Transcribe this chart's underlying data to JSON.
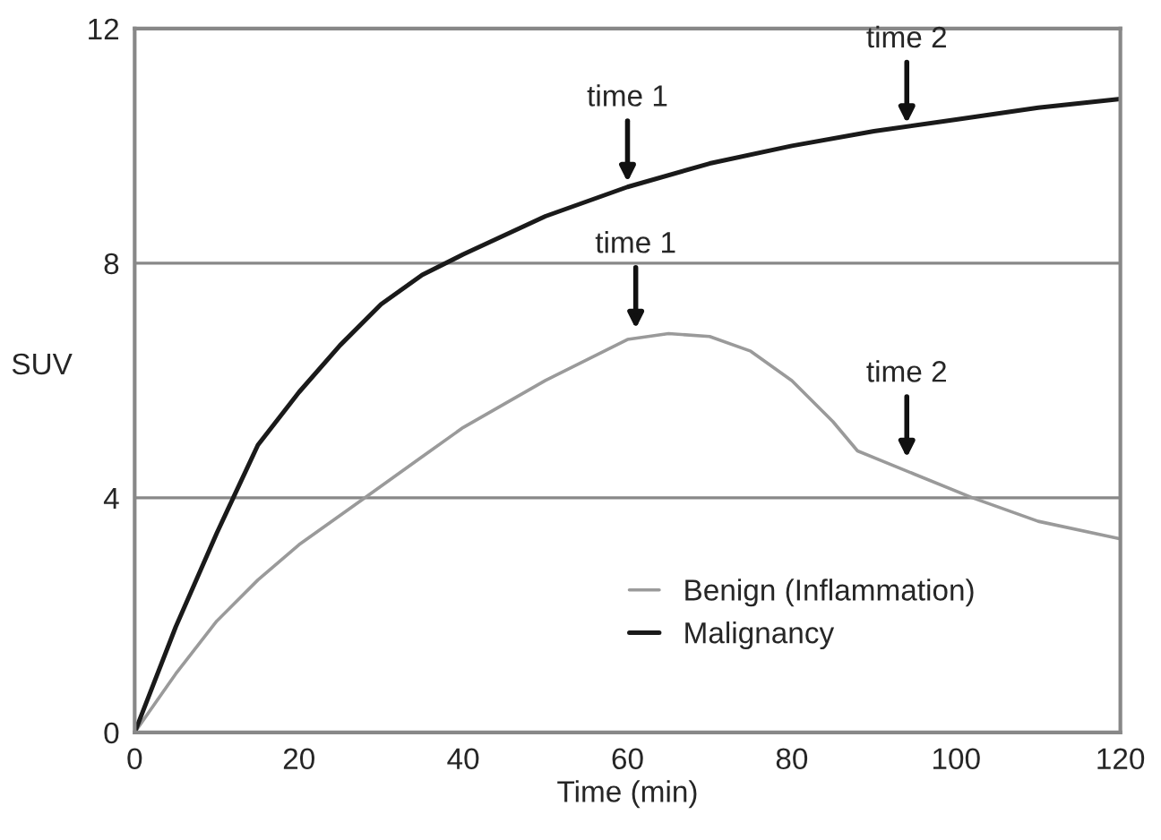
{
  "chart_data": {
    "type": "line",
    "xlabel": "Time (min)",
    "ylabel": "SUV",
    "xlim": [
      0,
      120
    ],
    "ylim": [
      0,
      12
    ],
    "xticks": [
      0,
      20,
      40,
      60,
      80,
      100,
      120
    ],
    "yticks": [
      0,
      4,
      8,
      12
    ],
    "grid": "y",
    "legend": "lower right",
    "marker": "none",
    "line_style": "solid",
    "series": [
      {
        "name": "Benign (Inflammation)",
        "color": "#9a9a9a",
        "x": [
          0,
          5,
          10,
          15,
          20,
          28,
          35,
          40,
          50,
          60,
          65,
          70,
          75,
          80,
          85,
          88,
          95,
          102,
          110,
          120
        ],
        "values": [
          0,
          1.0,
          1.9,
          2.6,
          3.2,
          4.0,
          4.7,
          5.2,
          6.0,
          6.7,
          6.8,
          6.75,
          6.5,
          6.0,
          5.3,
          4.8,
          4.4,
          4.0,
          3.6,
          3.3
        ]
      },
      {
        "name": "Malignancy",
        "color": "#1a1a1a",
        "x": [
          0,
          5,
          10,
          12,
          15,
          20,
          25,
          30,
          35,
          40,
          50,
          60,
          70,
          80,
          90,
          100,
          110,
          120
        ],
        "values": [
          0,
          1.8,
          3.4,
          4.0,
          4.9,
          5.8,
          6.6,
          7.3,
          7.8,
          8.15,
          8.8,
          9.3,
          9.7,
          10.0,
          10.25,
          10.45,
          10.65,
          10.8
        ]
      }
    ],
    "annotations": [
      {
        "text": "time 1",
        "x": 60,
        "y": 9.3
      },
      {
        "text": "time 2",
        "x": 94,
        "y": 10.3
      },
      {
        "text": "time 1",
        "x": 61,
        "y": 6.8
      },
      {
        "text": "time 2",
        "x": 94,
        "y": 4.6
      }
    ]
  }
}
